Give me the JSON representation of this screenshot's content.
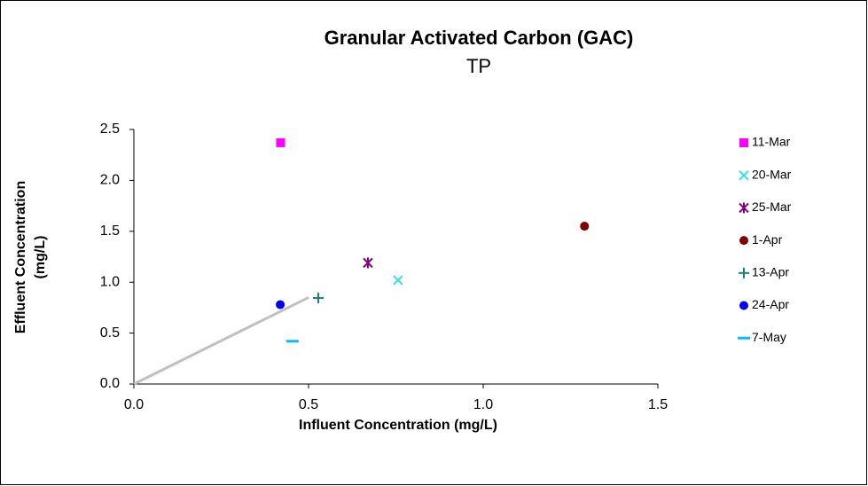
{
  "chart_data": {
    "type": "scatter",
    "title": "Granular Activated Carbon (GAC)",
    "subtitle": "TP",
    "x_label": "Influent Concentration (mg/L)",
    "y_label": [
      "Effluent Concentration",
      "(mg/L)"
    ],
    "xlim": [
      0,
      1.5
    ],
    "ylim": [
      0,
      2.5
    ],
    "xticks": [
      {
        "value": 0,
        "label": "0.0"
      },
      0.5,
      {
        "value": 1,
        "label": "1.0"
      },
      1.5
    ],
    "yticks": [
      {
        "value": 0,
        "label": "0.0"
      },
      0.5,
      {
        "value": 1,
        "label": "1.0"
      },
      1.5,
      {
        "value": 2,
        "label": "2.0"
      },
      2.5
    ],
    "grid": false,
    "legend": "right",
    "series": [
      {
        "name": "11-Mar",
        "color": "#ff00ff",
        "marker": "square",
        "x": [
          0.42
        ],
        "values": [
          2.37
        ]
      },
      {
        "name": "20-Mar",
        "color": "#33e0e8",
        "marker": "x",
        "x": [
          0.756
        ],
        "values": [
          1.02
        ]
      },
      {
        "name": "25-Mar",
        "color": "#800080",
        "marker": "asterisk",
        "x": [
          0.67
        ],
        "values": [
          1.19
        ]
      },
      {
        "name": "1-Apr",
        "color": "#800000",
        "marker": "circle",
        "x": [
          1.29
        ],
        "values": [
          1.55
        ]
      },
      {
        "name": "13-Apr",
        "color": "#1a7f7f",
        "marker": "plus",
        "x": [
          0.528
        ],
        "values": [
          0.845
        ]
      },
      {
        "name": "24-Apr",
        "color": "#0000ff",
        "marker": "circle",
        "x": [
          0.419
        ],
        "values": [
          0.78
        ]
      },
      {
        "name": "7-May",
        "color": "#00bfff",
        "marker": "dash",
        "x": [
          0.454
        ],
        "values": [
          0.42
        ]
      }
    ],
    "trend_line": {
      "color": "#c0c0c0",
      "x": [
        0,
        0.5
      ],
      "values": [
        0,
        0.85
      ]
    }
  }
}
